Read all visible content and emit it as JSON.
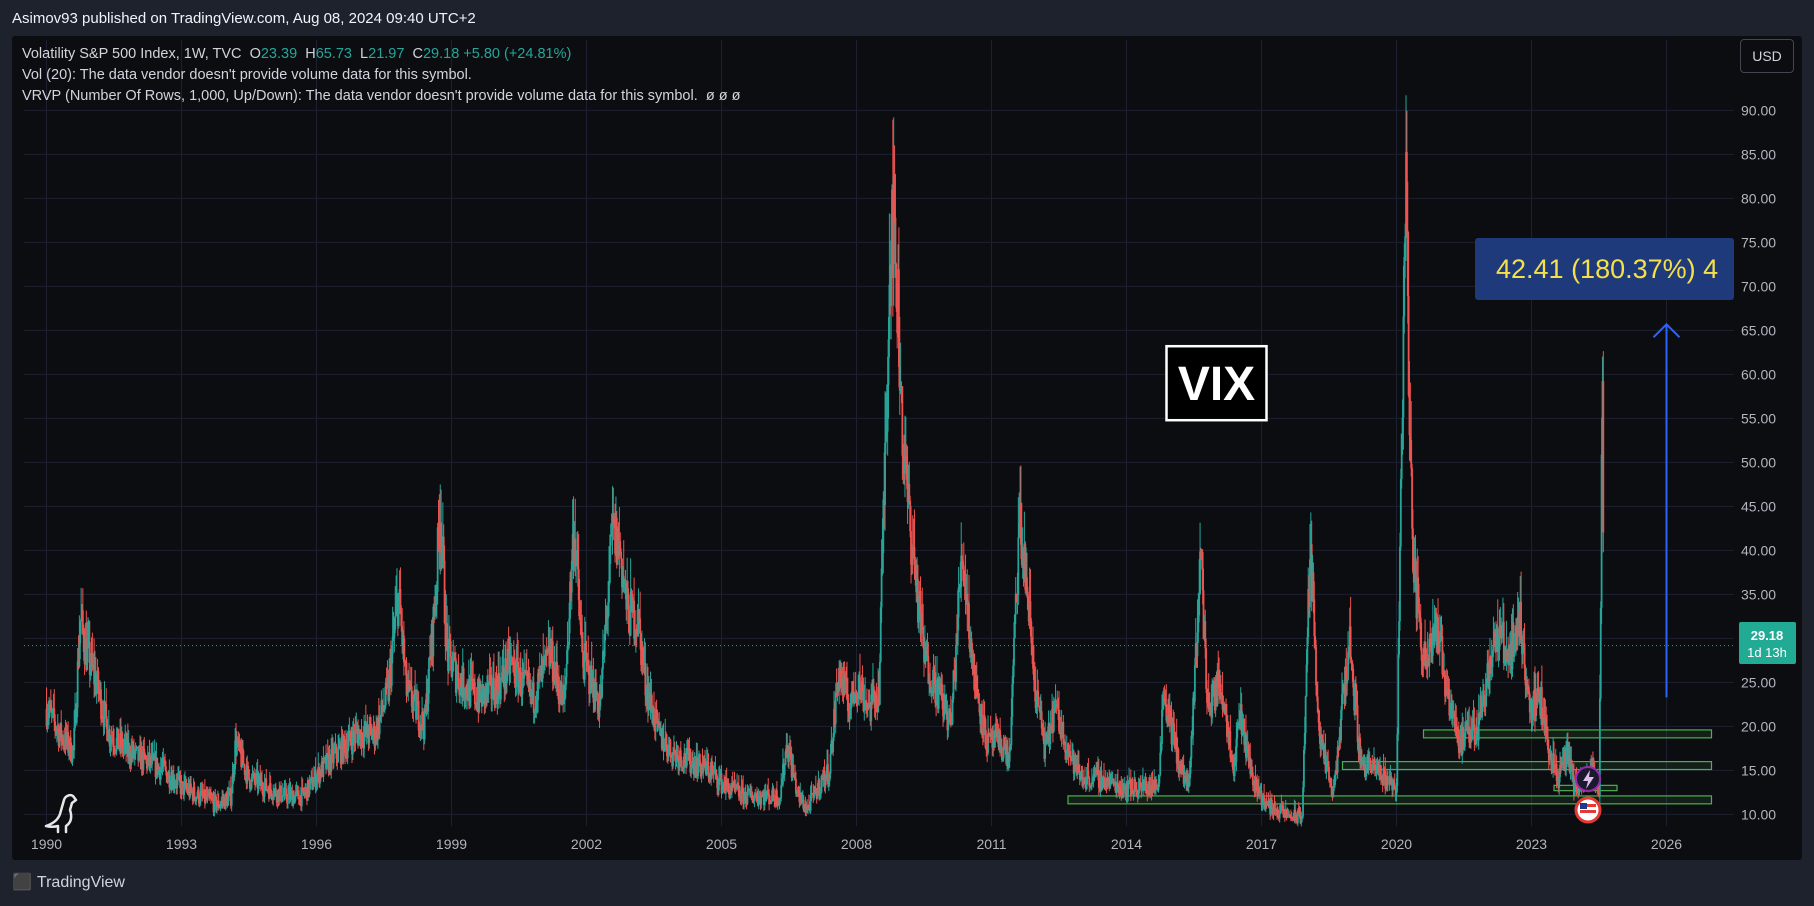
{
  "header": {
    "publisher_text": "Asimov93 published on TradingView.com, Aug 08, 2024 09:40 UTC+2"
  },
  "legend": {
    "title": "Volatility S&P 500 Index, 1W, TVC",
    "o_label": "O",
    "o_value": "23.39",
    "h_label": "H",
    "h_value": "65.73",
    "l_label": "L",
    "l_value": "21.97",
    "c_label": "C",
    "c_value": "29.18",
    "change": "+5.80 (+24.81%)",
    "vol_line": "Vol (20): The data vendor doesn't provide volume data for this symbol.",
    "vrvp_line": "VRVP (Number Of Rows, 1,000, Up/Down): The data vendor doesn't provide volume data for this symbol.",
    "vrvp_icons": "ø  ø  ø"
  },
  "currency_button": "USD",
  "price_tag": {
    "price": "29.18",
    "countdown": "1d 13h"
  },
  "annotations": {
    "vix_label": "VIX",
    "measure_label": "42.41 (180.37%) 4"
  },
  "footer": {
    "brand": "TradingView"
  },
  "colors": {
    "up": "#26a69a",
    "down": "#ef5350",
    "background": "#0b0d10",
    "grid": "#1c2030",
    "measure_box": "#1e3a7b",
    "measure_text": "#f5e04a",
    "support_box": "#4caf50"
  },
  "chart_data": {
    "type": "line",
    "title": "Volatility S&P 500 Index, 1W, TVC",
    "interval": "1W",
    "x_tick_labels": [
      "1990",
      "1993",
      "1996",
      "1999",
      "2002",
      "2005",
      "2008",
      "2011",
      "2014",
      "2017",
      "2020",
      "2023",
      "2026"
    ],
    "y_tick_labels": [
      "10.00",
      "15.00",
      "20.00",
      "25.00",
      "30.00",
      "35.00",
      "40.00",
      "45.00",
      "50.00",
      "55.00",
      "60.00",
      "65.00",
      "70.00",
      "75.00",
      "80.00",
      "85.00",
      "90.00"
    ],
    "ylim": [
      8,
      98
    ],
    "xlim": [
      1989.5,
      2027.5
    ],
    "last_close": 29.18,
    "series": [
      {
        "points": [
          [
            1990.0,
            22
          ],
          [
            1990.3,
            19
          ],
          [
            1990.6,
            17
          ],
          [
            1990.75,
            32
          ],
          [
            1990.9,
            28
          ],
          [
            1991.1,
            25
          ],
          [
            1991.4,
            19
          ],
          [
            1991.8,
            17
          ],
          [
            1992.2,
            16
          ],
          [
            1992.6,
            15
          ],
          [
            1993.0,
            13
          ],
          [
            1993.4,
            12
          ],
          [
            1993.8,
            11
          ],
          [
            1994.1,
            12
          ],
          [
            1994.2,
            18
          ],
          [
            1994.5,
            14
          ],
          [
            1994.9,
            13
          ],
          [
            1995.3,
            12
          ],
          [
            1995.7,
            12
          ],
          [
            1996.1,
            15
          ],
          [
            1996.5,
            17
          ],
          [
            1996.9,
            19
          ],
          [
            1997.3,
            19
          ],
          [
            1997.6,
            24
          ],
          [
            1997.82,
            35
          ],
          [
            1998.0,
            24
          ],
          [
            1998.4,
            20
          ],
          [
            1998.65,
            35
          ],
          [
            1998.75,
            45
          ],
          [
            1998.9,
            28
          ],
          [
            1999.2,
            25
          ],
          [
            1999.6,
            23
          ],
          [
            1999.9,
            24
          ],
          [
            2000.1,
            25
          ],
          [
            2000.3,
            27
          ],
          [
            2000.8,
            23
          ],
          [
            2001.2,
            28
          ],
          [
            2001.5,
            22
          ],
          [
            2001.72,
            43
          ],
          [
            2001.9,
            28
          ],
          [
            2002.3,
            22
          ],
          [
            2002.58,
            42
          ],
          [
            2002.75,
            40
          ],
          [
            2002.9,
            33
          ],
          [
            2003.15,
            32
          ],
          [
            2003.3,
            25
          ],
          [
            2003.6,
            19
          ],
          [
            2003.9,
            17
          ],
          [
            2004.3,
            16
          ],
          [
            2004.7,
            15
          ],
          [
            2005.1,
            13
          ],
          [
            2005.5,
            12
          ],
          [
            2005.9,
            12
          ],
          [
            2006.3,
            12
          ],
          [
            2006.45,
            18
          ],
          [
            2006.7,
            12
          ],
          [
            2006.9,
            10.5
          ],
          [
            2007.15,
            13
          ],
          [
            2007.4,
            15
          ],
          [
            2007.6,
            26
          ],
          [
            2007.85,
            22
          ],
          [
            2008.0,
            25
          ],
          [
            2008.3,
            22
          ],
          [
            2008.5,
            24
          ],
          [
            2008.78,
            80
          ],
          [
            2008.9,
            70
          ],
          [
            2009.05,
            50
          ],
          [
            2009.25,
            40
          ],
          [
            2009.5,
            28
          ],
          [
            2009.8,
            24
          ],
          [
            2010.1,
            20
          ],
          [
            2010.35,
            40
          ],
          [
            2010.6,
            26
          ],
          [
            2010.9,
            18
          ],
          [
            2011.2,
            18
          ],
          [
            2011.4,
            16
          ],
          [
            2011.62,
            43
          ],
          [
            2011.8,
            35
          ],
          [
            2011.95,
            25
          ],
          [
            2012.2,
            17
          ],
          [
            2012.4,
            22
          ],
          [
            2012.8,
            16
          ],
          [
            2013.0,
            14
          ],
          [
            2013.4,
            14
          ],
          [
            2013.9,
            13
          ],
          [
            2014.3,
            13
          ],
          [
            2014.7,
            13
          ],
          [
            2014.82,
            24
          ],
          [
            2015.2,
            15
          ],
          [
            2015.4,
            13
          ],
          [
            2015.65,
            40
          ],
          [
            2015.8,
            22
          ],
          [
            2016.1,
            25
          ],
          [
            2016.4,
            15
          ],
          [
            2016.5,
            22
          ],
          [
            2016.8,
            14
          ],
          [
            2017.1,
            11
          ],
          [
            2017.5,
            10
          ],
          [
            2017.9,
            9.5
          ],
          [
            2018.08,
            40
          ],
          [
            2018.3,
            18
          ],
          [
            2018.6,
            12
          ],
          [
            2018.95,
            30
          ],
          [
            2019.2,
            16
          ],
          [
            2019.5,
            15
          ],
          [
            2019.8,
            14
          ],
          [
            2020.0,
            13
          ],
          [
            2020.2,
            82
          ],
          [
            2020.35,
            40
          ],
          [
            2020.6,
            27
          ],
          [
            2020.85,
            32
          ],
          [
            2021.1,
            25
          ],
          [
            2021.4,
            18
          ],
          [
            2021.8,
            20
          ],
          [
            2022.1,
            28
          ],
          [
            2022.3,
            30
          ],
          [
            2022.5,
            28
          ],
          [
            2022.75,
            32
          ],
          [
            2022.95,
            22
          ],
          [
            2023.2,
            23
          ],
          [
            2023.4,
            17
          ],
          [
            2023.6,
            14
          ],
          [
            2023.8,
            17
          ],
          [
            2023.95,
            13
          ],
          [
            2024.2,
            13
          ],
          [
            2024.35,
            15
          ],
          [
            2024.5,
            13
          ],
          [
            2024.58,
            60
          ],
          [
            2024.61,
            29.18
          ]
        ]
      }
    ],
    "annotations": [
      {
        "type": "text_box",
        "text": "VIX",
        "x": 2016.0,
        "y": 59
      },
      {
        "type": "measure",
        "label": "42.41 (180.37%) 4",
        "x": 2026.0,
        "y_from": 23.3,
        "y_to": 65.7
      },
      {
        "type": "support_zone",
        "x1": 2012.7,
        "x2": 2027.0,
        "y1": 11.2,
        "y2": 12.1
      },
      {
        "type": "support_zone",
        "x1": 2018.8,
        "x2": 2027.0,
        "y1": 15.1,
        "y2": 16.0
      },
      {
        "type": "support_zone",
        "x1": 2020.6,
        "x2": 2027.0,
        "y1": 18.7,
        "y2": 19.6
      },
      {
        "type": "support_zone",
        "x1": 2023.5,
        "x2": 2024.9,
        "y1": 12.7,
        "y2": 13.3
      }
    ]
  }
}
